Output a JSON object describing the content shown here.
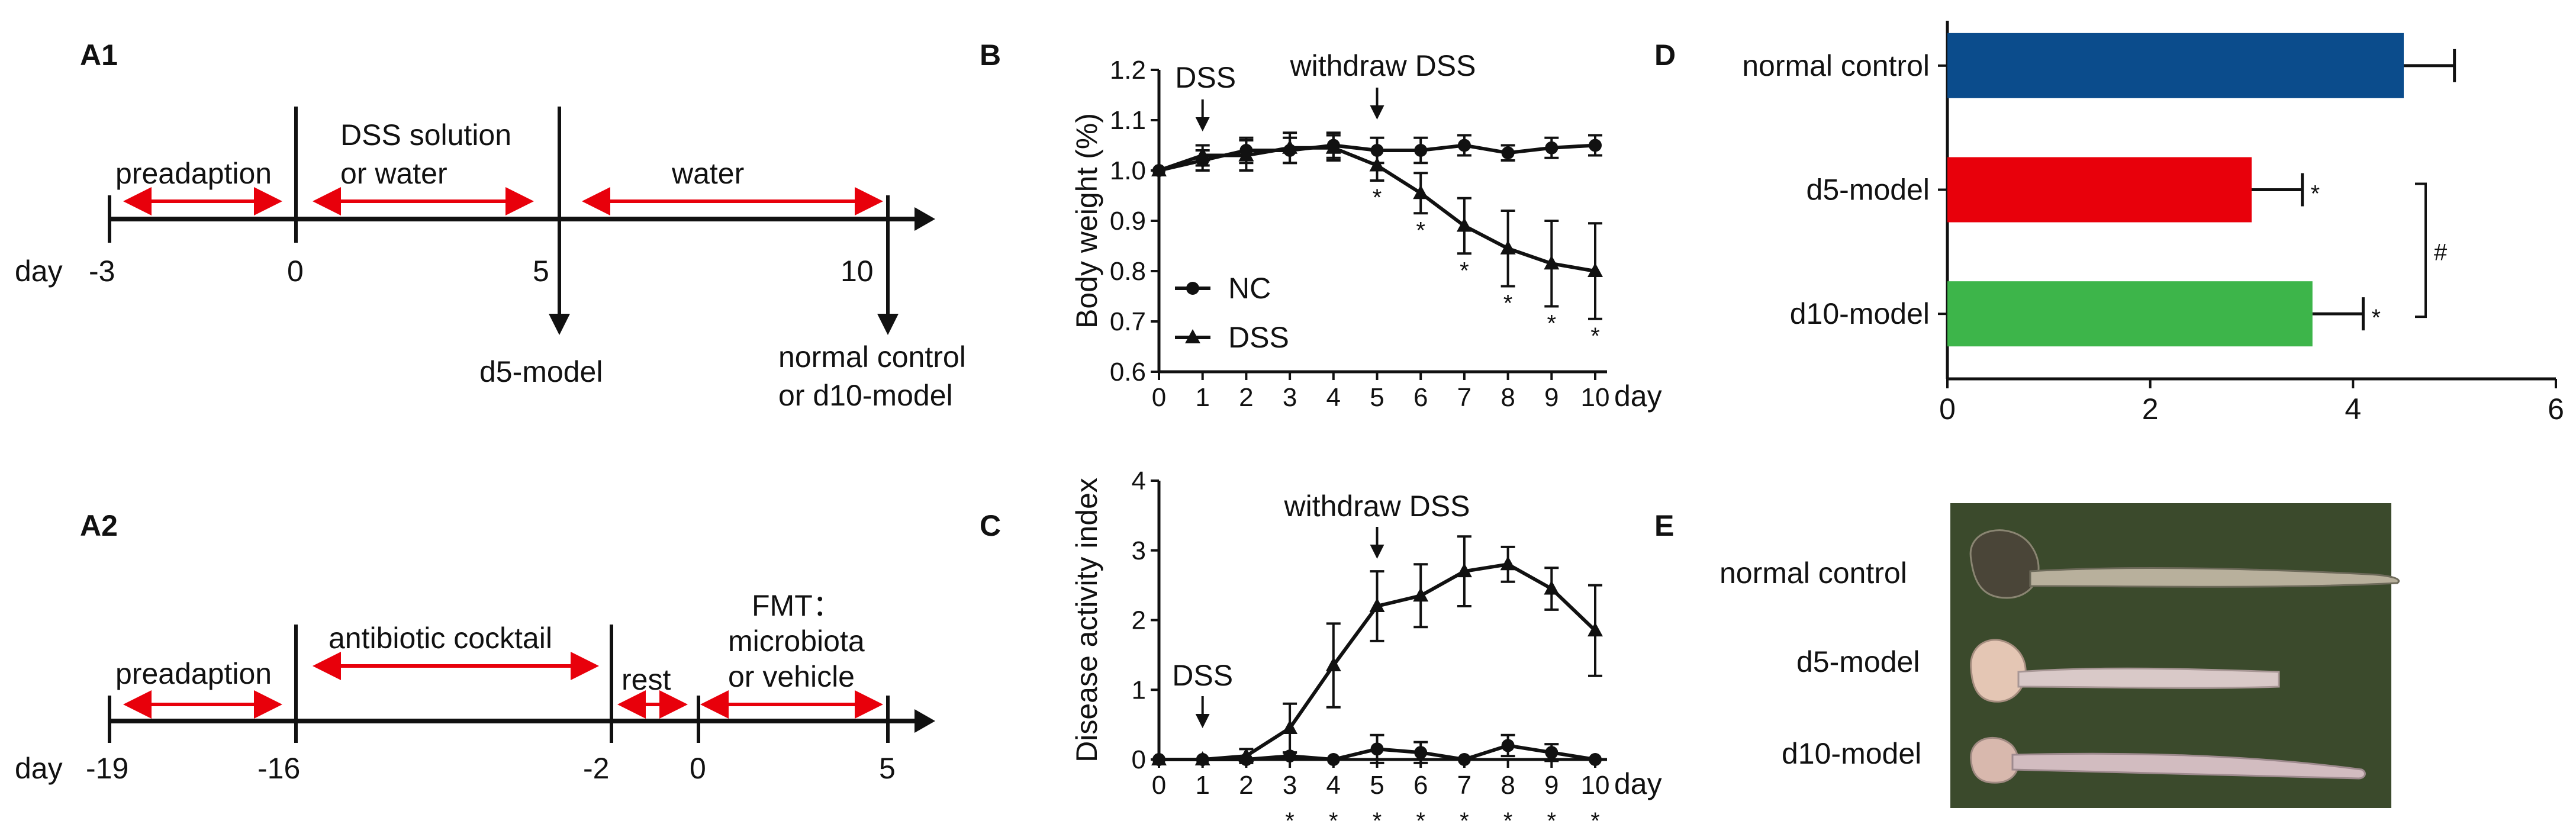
{
  "figure": {
    "panels": {
      "A1": "A1",
      "A2": "A2",
      "B": "B",
      "C": "C",
      "D": "D",
      "E": "E"
    }
  },
  "timeline_a1": {
    "unit": "day",
    "days": [
      "-3",
      "0",
      "5",
      "10"
    ],
    "segments": [
      "preadaption",
      "DSS solution",
      "or water",
      "water"
    ],
    "outcomes": [
      "d5-model",
      "normal control",
      "or d10-model"
    ]
  },
  "timeline_a2": {
    "unit": "day",
    "days": [
      "-19",
      "-16",
      "-2",
      "0",
      "5"
    ],
    "segments": [
      "preadaption",
      "antibiotic cocktail",
      "rest",
      "FMT：",
      "microbiota",
      "or vehicle"
    ]
  },
  "photo": {
    "labels": [
      "normal control",
      "d5-model",
      "d10-model"
    ]
  },
  "chart_data": [
    {
      "id": "B",
      "type": "line",
      "ylabel": "Body weight (%)",
      "xlabel": "day",
      "x": [
        0,
        1,
        2,
        3,
        4,
        5,
        6,
        7,
        8,
        9,
        10
      ],
      "xlim": [
        0,
        10
      ],
      "ylim": [
        0.6,
        1.2
      ],
      "yticks": [
        "0.6",
        "0.7",
        "0.8",
        "0.9",
        "1.0",
        "1.1",
        "1.2"
      ],
      "xticks": [
        "0",
        "1",
        "2",
        "3",
        "4",
        "5",
        "6",
        "7",
        "8",
        "9",
        "10"
      ],
      "series": [
        {
          "name": "NC",
          "marker": "circle",
          "values": [
            1.0,
            1.02,
            1.04,
            1.04,
            1.05,
            1.04,
            1.04,
            1.05,
            1.035,
            1.045,
            1.05
          ],
          "err": [
            0,
            0.02,
            0.025,
            0.025,
            0.025,
            0.025,
            0.025,
            0.02,
            0.015,
            0.02,
            0.02
          ]
        },
        {
          "name": "DSS",
          "marker": "triangle",
          "values": [
            1.0,
            1.03,
            1.03,
            1.045,
            1.045,
            1.01,
            0.955,
            0.89,
            0.845,
            0.815,
            0.8
          ],
          "err": [
            0,
            0.02,
            0.03,
            0.03,
            0.025,
            0.03,
            0.04,
            0.055,
            0.075,
            0.085,
            0.095
          ]
        }
      ],
      "annotations": [
        "DSS",
        "withdraw DSS"
      ],
      "annotation_x": [
        1,
        5
      ],
      "significance": [
        "*",
        "*",
        "*",
        "*",
        "*",
        "*"
      ],
      "significance_x": [
        5,
        6,
        7,
        8,
        9,
        10
      ]
    },
    {
      "id": "C",
      "type": "line",
      "ylabel": "Disease activity index",
      "xlabel": "day",
      "x": [
        0,
        1,
        2,
        3,
        4,
        5,
        6,
        7,
        8,
        9,
        10
      ],
      "xlim": [
        0,
        10
      ],
      "ylim": [
        0,
        4
      ],
      "yticks": [
        "0",
        "1",
        "2",
        "3",
        "4"
      ],
      "xticks": [
        "0",
        "1",
        "2",
        "3",
        "4",
        "5",
        "6",
        "7",
        "8",
        "9",
        "10"
      ],
      "series": [
        {
          "name": "NC",
          "marker": "circle",
          "values": [
            0,
            0,
            0,
            0.05,
            0,
            0.15,
            0.1,
            0,
            0.2,
            0.1,
            0
          ],
          "err": [
            0,
            0,
            0,
            0.05,
            0,
            0.2,
            0.15,
            0,
            0.15,
            0.12,
            0
          ]
        },
        {
          "name": "DSS",
          "marker": "triangle",
          "values": [
            0,
            0,
            0.05,
            0.45,
            1.35,
            2.2,
            2.35,
            2.7,
            2.8,
            2.45,
            1.85
          ],
          "err": [
            0,
            0,
            0.1,
            0.35,
            0.6,
            0.5,
            0.45,
            0.5,
            0.25,
            0.3,
            0.65
          ]
        }
      ],
      "annotations": [
        "DSS",
        "withdraw DSS"
      ],
      "annotation_x": [
        1,
        5
      ],
      "significance": [
        "*",
        "*",
        "*",
        "*",
        "*",
        "*",
        "*",
        "*"
      ],
      "significance_x": [
        3,
        4,
        5,
        6,
        7,
        8,
        9,
        10
      ]
    },
    {
      "id": "D",
      "type": "bar",
      "orientation": "horizontal",
      "categories": [
        "normal control",
        "d5-model",
        "d10-model"
      ],
      "values": [
        4.5,
        3.0,
        3.6
      ],
      "err": [
        0.5,
        0.5,
        0.5
      ],
      "colors": [
        "#0b4c8c",
        "#e8000b",
        "#3db54a"
      ],
      "xlim": [
        0,
        6
      ],
      "xticks": [
        "0",
        "2",
        "4",
        "6"
      ],
      "significance": [
        "",
        "*",
        "*"
      ],
      "bracket_label": "#"
    }
  ]
}
